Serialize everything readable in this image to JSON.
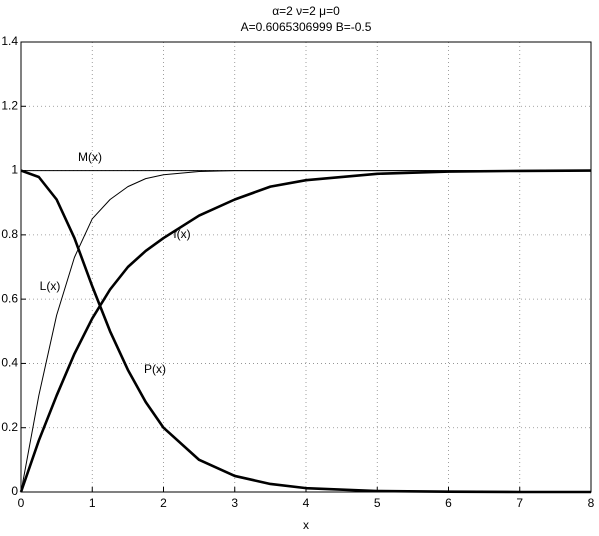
{
  "chart_data": {
    "type": "line",
    "title": "α=2   ν=2   μ=0",
    "subtitle": "A=0.6065306999   B=-0.5",
    "x_label": "x",
    "x": [
      0,
      0.25,
      0.5,
      0.75,
      1,
      1.25,
      1.5,
      1.75,
      2,
      2.5,
      3,
      3.5,
      4,
      5,
      6,
      7,
      8
    ],
    "series": [
      {
        "name": "M(x)",
        "color": "#000000",
        "linewidth": 1,
        "values": [
          1,
          1,
          1,
          1,
          1,
          1,
          1,
          1,
          1,
          1,
          1,
          1,
          1,
          1,
          1,
          1,
          1
        ]
      },
      {
        "name": "L(x)",
        "color": "#000000",
        "linewidth": 1,
        "values": [
          0,
          0.3,
          0.55,
          0.73,
          0.85,
          0.91,
          0.95,
          0.975,
          0.987,
          0.997,
          1,
          1,
          1,
          1,
          1,
          1,
          1
        ]
      },
      {
        "name": "f(x)",
        "color": "#000000",
        "linewidth": 2.6,
        "values": [
          0,
          0.16,
          0.3,
          0.43,
          0.54,
          0.63,
          0.7,
          0.75,
          0.79,
          0.86,
          0.91,
          0.95,
          0.97,
          0.99,
          0.997,
          0.999,
          1
        ]
      },
      {
        "name": "P(x)",
        "color": "#000000",
        "linewidth": 2.6,
        "values": [
          1,
          0.98,
          0.91,
          0.79,
          0.64,
          0.5,
          0.38,
          0.28,
          0.2,
          0.1,
          0.05,
          0.025,
          0.012,
          0.003,
          0.001,
          0,
          0
        ]
      }
    ],
    "xlim": [
      0,
      8
    ],
    "xticks": [
      0,
      1,
      2,
      3,
      4,
      5,
      6,
      7,
      8
    ],
    "ylim": [
      0,
      1.4
    ],
    "yticks": [
      0,
      0.2,
      0.4,
      0.6,
      0.8,
      1,
      1.2,
      1.4
    ],
    "grid": true
  }
}
